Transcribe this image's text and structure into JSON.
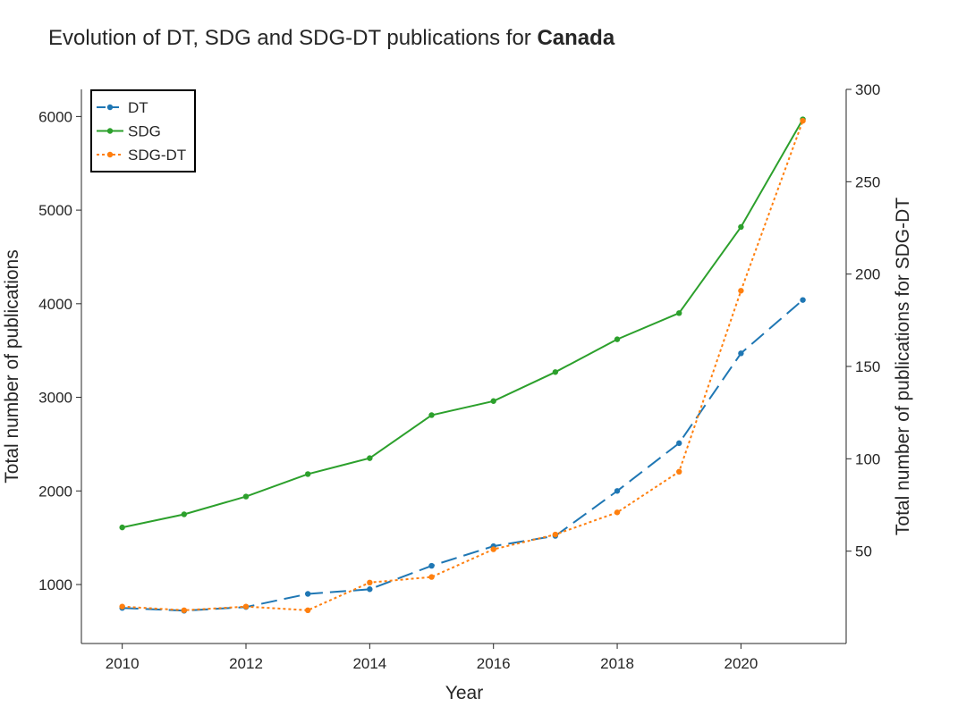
{
  "chart_data": {
    "type": "line",
    "title_prefix": "Evolution of DT, SDG and SDG-DT publications for ",
    "title_bold": "Canada",
    "xlabel": "Year",
    "ylabel_left": "Total number of publications",
    "ylabel_right": "Total number of publications for SDG-DT",
    "x": [
      2010,
      2011,
      2012,
      2013,
      2014,
      2015,
      2016,
      2017,
      2018,
      2019,
      2020,
      2021
    ],
    "x_ticks": [
      "2010",
      "2012",
      "2014",
      "2016",
      "2018",
      "2020"
    ],
    "x_tick_values": [
      2010,
      2012,
      2014,
      2016,
      2018,
      2020
    ],
    "xlim": [
      2009.34,
      2021.7
    ],
    "ylim_left": [
      370,
      6290
    ],
    "ylim_right": [
      0,
      300
    ],
    "y_ticks_left": [
      "1000",
      "2000",
      "3000",
      "4000",
      "5000",
      "6000"
    ],
    "y_tick_values_left": [
      1000,
      2000,
      3000,
      4000,
      5000,
      6000
    ],
    "y_ticks_right": [
      "50",
      "100",
      "150",
      "200",
      "250",
      "300"
    ],
    "y_tick_values_right": [
      50,
      100,
      150,
      200,
      250,
      300
    ],
    "legend_position": "top-left",
    "series": [
      {
        "name": "DT",
        "axis": "left",
        "color": "#1f77b4",
        "dash": "dashed",
        "values": [
          750,
          720,
          760,
          900,
          950,
          1200,
          1410,
          1520,
          2000,
          2510,
          3470,
          4040
        ]
      },
      {
        "name": "SDG",
        "axis": "left",
        "color": "#2ca02c",
        "dash": "solid",
        "values": [
          1610,
          1750,
          1940,
          2180,
          2350,
          2810,
          2960,
          3270,
          3620,
          3900,
          4820,
          5970
        ]
      },
      {
        "name": "SDG-DT",
        "axis": "right",
        "color": "#ff7f0e",
        "dash": "dotted",
        "values": [
          20,
          18,
          20,
          18,
          33,
          36,
          51,
          59,
          71,
          93,
          191,
          283
        ]
      }
    ]
  }
}
